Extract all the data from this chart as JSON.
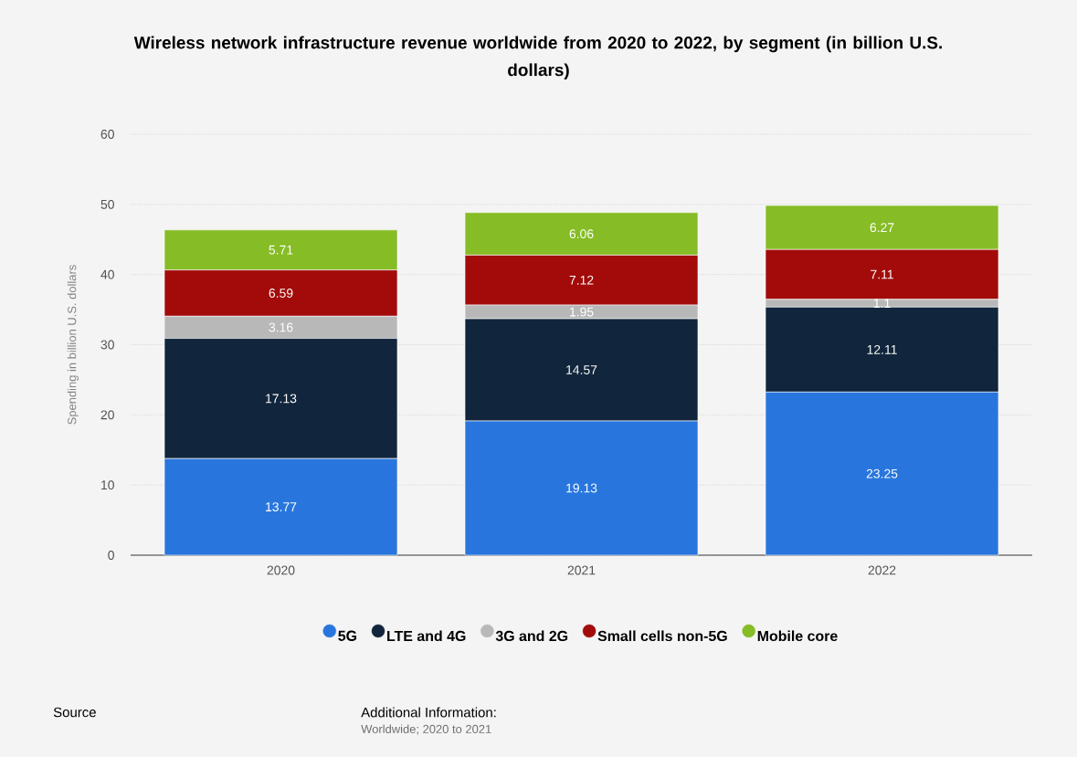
{
  "chart_data": {
    "type": "bar",
    "title": "Wireless network infrastructure revenue worldwide from 2020 to 2022, by segment (in billion U.S. dollars)",
    "ylabel": "Spending in billion U.S. dollars",
    "annotations": [
      "Source",
      "Additional Information:",
      "Worldwide; 2020 to 2021"
    ],
    "categories": [
      "2020",
      "2021",
      "2022"
    ],
    "series": [
      {
        "name": "5G",
        "color": "#2876dd",
        "values": [
          13.77,
          19.13,
          23.25
        ]
      },
      {
        "name": "LTE and 4G",
        "color": "#11263c",
        "values": [
          17.13,
          14.57,
          12.11
        ]
      },
      {
        "name": "3G and 2G",
        "color": "#b8b8b8",
        "values": [
          3.16,
          1.95,
          1.1
        ]
      },
      {
        "name": "Small cells non-5G",
        "color": "#a30b0b",
        "values": [
          6.59,
          7.12,
          7.11
        ]
      },
      {
        "name": "Mobile core",
        "color": "#86bc25",
        "values": [
          5.71,
          6.06,
          6.27
        ]
      }
    ],
    "stacked": true,
    "data_labels": true,
    "ylim": [
      0,
      60
    ],
    "yticks": [
      0,
      10,
      20,
      30,
      40,
      50,
      60
    ],
    "grid": "y",
    "legend": "bottom"
  }
}
